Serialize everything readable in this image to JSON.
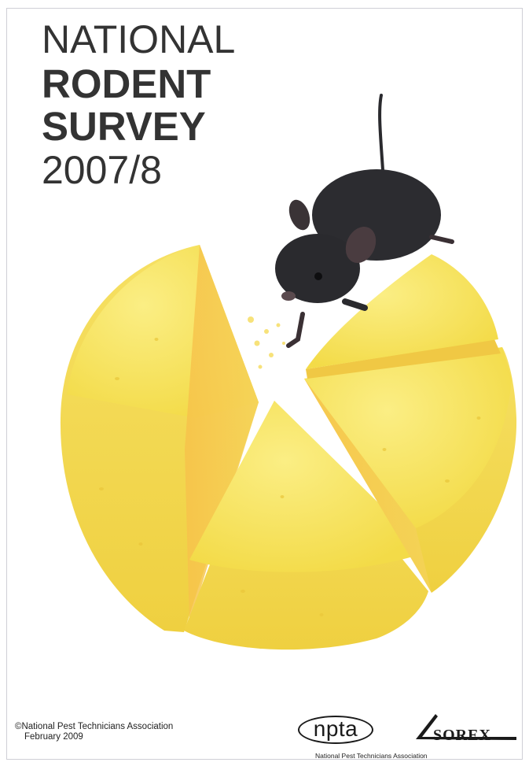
{
  "title": {
    "line1": "NATIONAL",
    "line2": "RODENT",
    "line3": "SURVEY",
    "line4": "2007/8"
  },
  "footer": {
    "copyright": "©National Pest Technicians Association",
    "date": "February 2009"
  },
  "logos": {
    "npta": "npta",
    "npta_subtitle": "National Pest Technicians Association",
    "sorex": "SOREX"
  },
  "colors": {
    "cheese": "#f6e15a",
    "cheese_side": "#f2cf3c",
    "mouse": "#2a2a2e",
    "title": "#333333"
  }
}
